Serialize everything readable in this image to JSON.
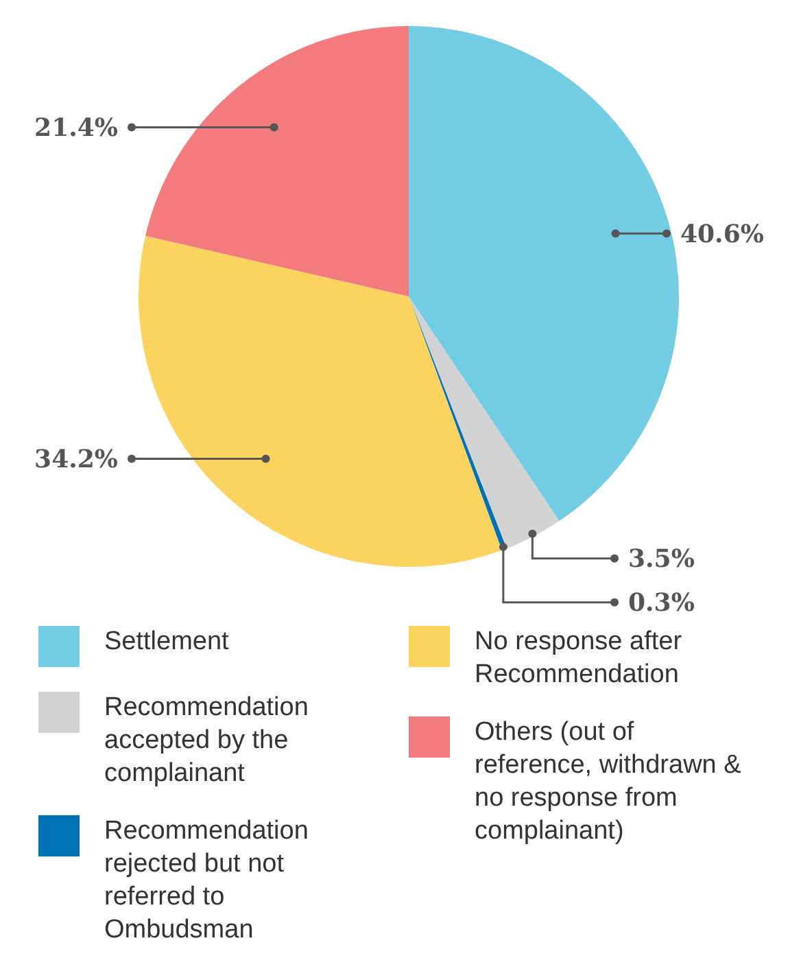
{
  "chart_data": {
    "type": "pie",
    "categories": [
      "Settlement",
      "Recommendation accepted by the complainant",
      "Recommendation rejected but not referred to Ombudsman",
      "No response after Recommendation",
      "Others (out of reference, withdrawn & no response from complainant)"
    ],
    "values": [
      40.6,
      3.5,
      0.3,
      34.2,
      21.4
    ],
    "colors": [
      "#72cde4",
      "#d1d3d4",
      "#0072b1",
      "#fdd35f",
      "#f37b7d"
    ],
    "value_labels": [
      "40.6%",
      "3.5%",
      "0.3%",
      "34.2%",
      "21.4%"
    ],
    "legend": "bottom"
  }
}
